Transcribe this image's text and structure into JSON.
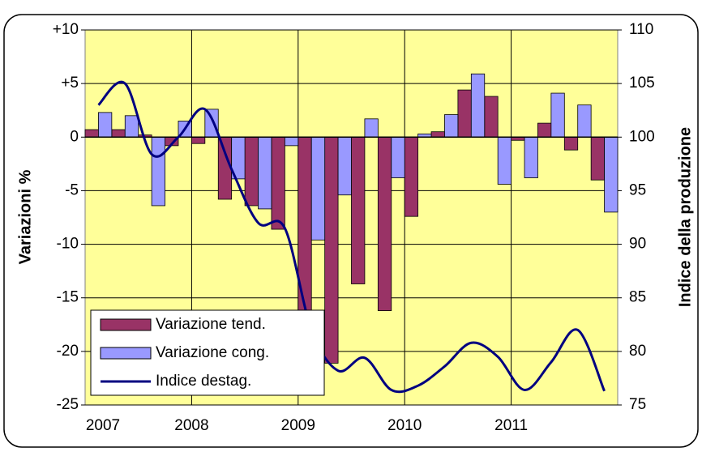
{
  "chart_data": {
    "type": "bar",
    "categories": [
      null,
      null,
      null,
      null,
      null,
      null,
      null,
      null,
      null,
      null,
      null,
      null,
      null,
      null,
      null,
      null,
      null,
      null,
      null,
      null
    ],
    "xticks": [
      "2007",
      "2008",
      "2009",
      "2010",
      "2011"
    ],
    "ylabel": "Variazioni %",
    "y2label": "Indice della produzione",
    "ylim": [
      -25,
      10
    ],
    "yticks": [
      -25,
      -20,
      -15,
      -10,
      -5,
      0,
      {
        "value": 5,
        "label": "+5"
      },
      {
        "value": 10,
        "label": "+10"
      }
    ],
    "y2lim": [
      75,
      110
    ],
    "y2ticks": [
      75,
      80,
      85,
      90,
      95,
      100,
      105,
      110
    ],
    "grid": true,
    "legend": "lower left",
    "series": [
      {
        "name": "Variazione tend.",
        "color": "#993366",
        "values": [
          0.7,
          0.7,
          0.2,
          -0.8,
          -0.6,
          -5.8,
          -6.4,
          -8.6,
          -18.0,
          -21.1,
          -13.7,
          -16.2,
          -7.4,
          0.5,
          4.4,
          3.8,
          -0.3,
          1.3,
          -1.2,
          -4.0
        ]
      },
      {
        "name": "Variazione cong.",
        "color": "#9999ff",
        "values": [
          2.3,
          2.0,
          -6.4,
          1.5,
          2.6,
          -3.9,
          -6.7,
          -0.8,
          -9.6,
          -5.4,
          1.7,
          -3.8,
          0.3,
          2.1,
          5.9,
          -4.4,
          -3.8,
          4.1,
          3.0,
          -7.0
        ]
      },
      {
        "name": "Indice destag.",
        "color": "#000080",
        "type": "line",
        "axis": "y2",
        "values": [
          103.0,
          105.0,
          98.4,
          100.0,
          102.6,
          97.0,
          92.0,
          91.5,
          82.0,
          78.2,
          79.4,
          76.4,
          76.8,
          78.6,
          80.8,
          79.5,
          76.4,
          79.0,
          82.0,
          76.3
        ]
      }
    ]
  }
}
